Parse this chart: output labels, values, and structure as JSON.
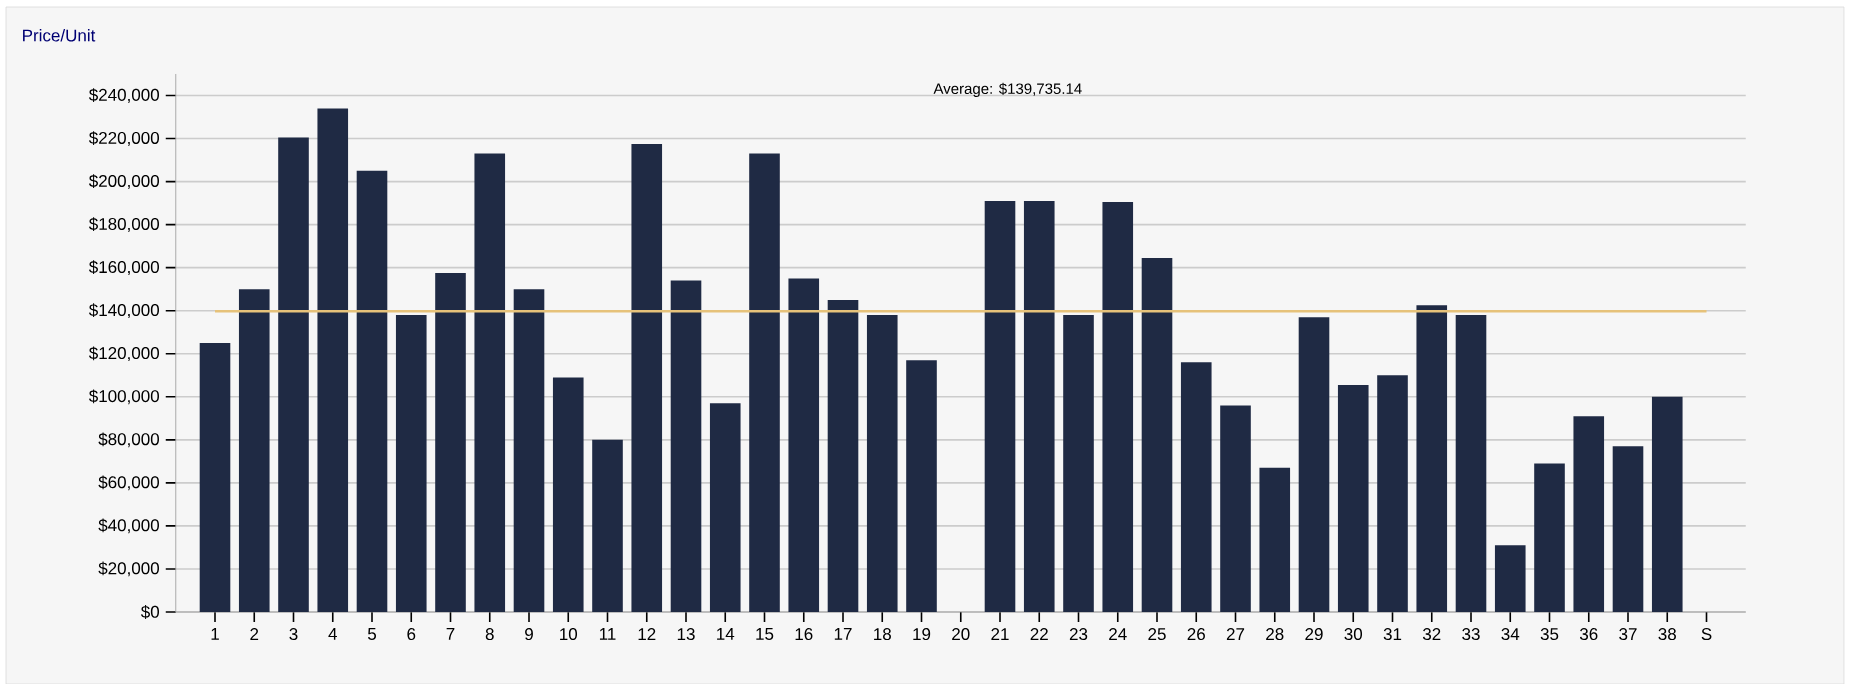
{
  "chart_data": {
    "type": "bar",
    "ylabel": "Price/Unit",
    "categories": [
      "1",
      "2",
      "3",
      "4",
      "5",
      "6",
      "7",
      "8",
      "9",
      "10",
      "11",
      "12",
      "13",
      "14",
      "15",
      "16",
      "17",
      "18",
      "19",
      "20",
      "21",
      "22",
      "23",
      "24",
      "25",
      "26",
      "27",
      "28",
      "29",
      "30",
      "31",
      "32",
      "33",
      "34",
      "35",
      "36",
      "37",
      "38",
      "S"
    ],
    "values": [
      125000,
      150000,
      220500,
      234000,
      205000,
      138000,
      157500,
      213000,
      150000,
      109000,
      80000,
      217500,
      154000,
      97000,
      213000,
      155000,
      145000,
      138000,
      117000,
      null,
      191000,
      191000,
      138000,
      190500,
      164500,
      116000,
      96000,
      67000,
      137000,
      105500,
      110000,
      142500,
      138000,
      31000,
      69000,
      91000,
      77000,
      100000,
      null
    ],
    "color": "#1f2a44",
    "ylim": [
      0,
      250000
    ],
    "yticks": [
      {
        "value": 0,
        "label": "$0"
      },
      {
        "value": 20000,
        "label": "$20,000"
      },
      {
        "value": 40000,
        "label": "$40,000"
      },
      {
        "value": 60000,
        "label": "$60,000"
      },
      {
        "value": 80000,
        "label": "$80,000"
      },
      {
        "value": 100000,
        "label": "$100,000"
      },
      {
        "value": 120000,
        "label": "$120,000"
      },
      {
        "value": 140000,
        "label": "$140,000"
      },
      {
        "value": 160000,
        "label": "$160,000"
      },
      {
        "value": 180000,
        "label": "$180,000"
      },
      {
        "value": 200000,
        "label": "$200,000"
      },
      {
        "value": 220000,
        "label": "$220,000"
      },
      {
        "value": 240000,
        "label": "$240,000"
      }
    ],
    "grid": "y",
    "ref_lines": [
      {
        "axis": "y",
        "value": 139735.14,
        "color": "#e6c27a"
      }
    ],
    "annotations": [
      "Average: $139,735.14"
    ]
  }
}
